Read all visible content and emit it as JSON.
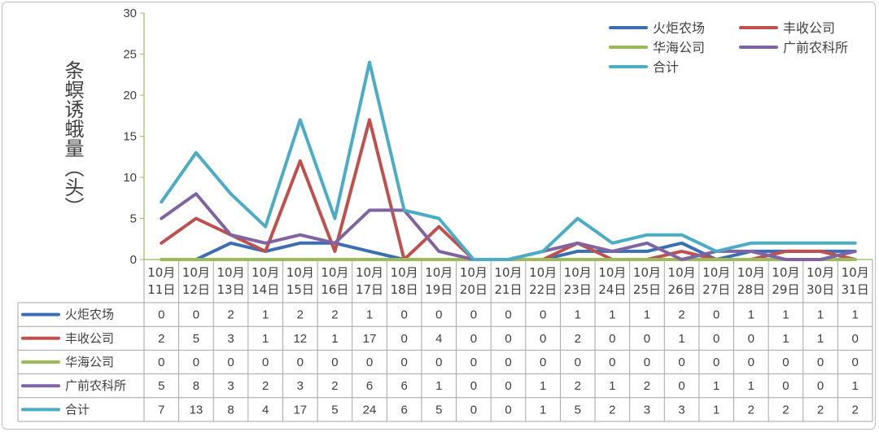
{
  "chart_data": {
    "type": "line",
    "title": "",
    "xlabel": "",
    "ylabel": "条螟诱蛾量（头）",
    "ylim": [
      0,
      30
    ],
    "yticks": [
      0,
      5,
      10,
      15,
      20,
      25,
      30
    ],
    "legend_position": "top-right",
    "grid": false,
    "categories": [
      "10月11日",
      "10月12日",
      "10月13日",
      "10月14日",
      "10月15日",
      "10月16日",
      "10月17日",
      "10月18日",
      "10月19日",
      "10月20日",
      "10月21日",
      "10月22日",
      "10月23日",
      "10月24日",
      "10月25日",
      "10月26日",
      "10月27日",
      "10月28日",
      "10月29日",
      "10月30日",
      "10月31日"
    ],
    "category_lines": [
      [
        "10月",
        "11日"
      ],
      [
        "10月",
        "12日"
      ],
      [
        "10月",
        "13日"
      ],
      [
        "10月",
        "14日"
      ],
      [
        "10月",
        "15日"
      ],
      [
        "10月",
        "16日"
      ],
      [
        "10月",
        "17日"
      ],
      [
        "10月",
        "18日"
      ],
      [
        "10月",
        "19日"
      ],
      [
        "10月",
        "20日"
      ],
      [
        "10月",
        "21日"
      ],
      [
        "10月",
        "22日"
      ],
      [
        "10月",
        "23日"
      ],
      [
        "10月",
        "24日"
      ],
      [
        "10月",
        "25日"
      ],
      [
        "10月",
        "26日"
      ],
      [
        "10月",
        "27日"
      ],
      [
        "10月",
        "28日"
      ],
      [
        "10月",
        "29日"
      ],
      [
        "10月",
        "30日"
      ],
      [
        "10月",
        "31日"
      ]
    ],
    "series": [
      {
        "name": "火炬农场",
        "color": "#3a6fb5",
        "values": [
          0,
          0,
          2,
          1,
          2,
          2,
          1,
          0,
          0,
          0,
          0,
          0,
          1,
          1,
          1,
          2,
          0,
          1,
          1,
          1,
          1
        ]
      },
      {
        "name": "丰收公司",
        "color": "#c0504d",
        "values": [
          2,
          5,
          3,
          1,
          12,
          1,
          17,
          0,
          4,
          0,
          0,
          0,
          2,
          0,
          0,
          1,
          0,
          0,
          1,
          1,
          0
        ]
      },
      {
        "name": "华海公司",
        "color": "#9bbb59",
        "values": [
          0,
          0,
          0,
          0,
          0,
          0,
          0,
          0,
          0,
          0,
          0,
          0,
          0,
          0,
          0,
          0,
          0,
          0,
          0,
          0,
          0
        ]
      },
      {
        "name": "广前农科所",
        "color": "#8064a2",
        "values": [
          5,
          8,
          3,
          2,
          3,
          2,
          6,
          6,
          1,
          0,
          0,
          1,
          2,
          1,
          2,
          0,
          1,
          1,
          0,
          0,
          1
        ]
      },
      {
        "name": "合计",
        "color": "#4bacc6",
        "values": [
          7,
          13,
          8,
          4,
          17,
          5,
          24,
          6,
          5,
          0,
          0,
          1,
          5,
          2,
          3,
          3,
          1,
          2,
          2,
          2,
          2
        ]
      }
    ]
  }
}
